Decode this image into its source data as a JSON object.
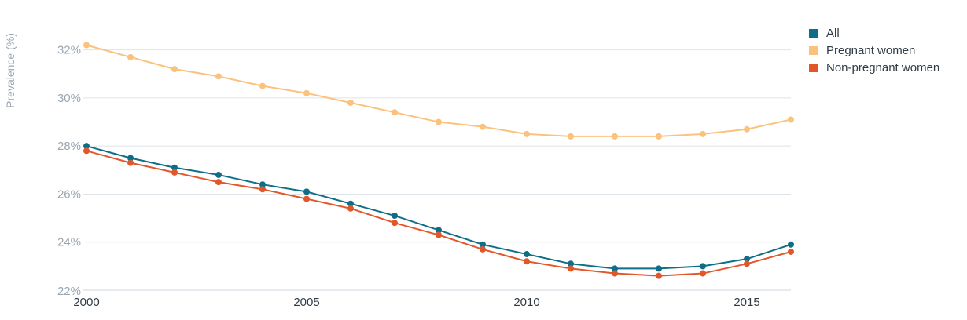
{
  "chart_data": {
    "type": "line",
    "ylabel": "Prevalence (%)",
    "xlabel": "",
    "x": [
      2000,
      2001,
      2002,
      2003,
      2004,
      2005,
      2006,
      2007,
      2008,
      2009,
      2010,
      2011,
      2012,
      2013,
      2014,
      2015,
      2016
    ],
    "xlim": [
      2000,
      2016
    ],
    "ylim": [
      22,
      33
    ],
    "x_ticks": [
      "2000",
      "2005",
      "2010",
      "2015"
    ],
    "y_ticks": [
      "22%",
      "24%",
      "26%",
      "28%",
      "30%",
      "32%"
    ],
    "grid": true,
    "legend": "top-right",
    "series": [
      {
        "name": "All",
        "color": "#0f6e87",
        "values": [
          28.0,
          27.5,
          27.1,
          26.8,
          26.4,
          26.1,
          25.6,
          25.1,
          24.5,
          23.9,
          23.5,
          23.1,
          22.9,
          22.9,
          23.0,
          23.3,
          23.9
        ]
      },
      {
        "name": "Pregnant women",
        "color": "#fbc27e",
        "values": [
          32.2,
          31.7,
          31.2,
          30.9,
          30.5,
          30.2,
          29.8,
          29.4,
          29.0,
          28.8,
          28.5,
          28.4,
          28.4,
          28.4,
          28.5,
          28.7,
          29.1
        ]
      },
      {
        "name": "Non-pregnant women",
        "color": "#e2572a",
        "values": [
          27.8,
          27.3,
          26.9,
          26.5,
          26.2,
          25.8,
          25.4,
          24.8,
          24.3,
          23.7,
          23.2,
          22.9,
          22.7,
          22.6,
          22.7,
          23.1,
          23.6
        ]
      }
    ]
  }
}
